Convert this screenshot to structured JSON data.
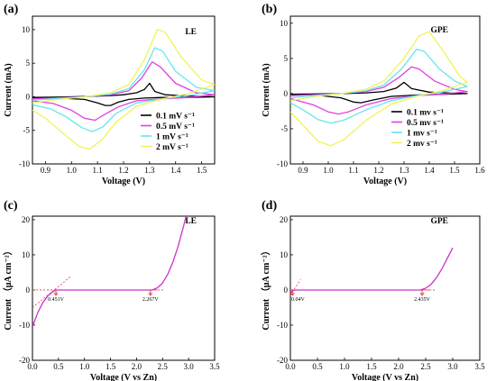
{
  "chart_data": [
    {
      "type": "line",
      "panel": "(a)",
      "tag": "LE",
      "xlabel": "Voltage (V)",
      "ylabel": "Current (mA)",
      "xlim": [
        0.85,
        1.55
      ],
      "ylim": [
        -10,
        12
      ],
      "xticks": [
        "0.9",
        "1.0",
        "1.1",
        "1.2",
        "1.3",
        "1.4",
        "1.5"
      ],
      "xtick_values": [
        0.9,
        1.0,
        1.1,
        1.2,
        1.3,
        1.4,
        1.5
      ],
      "yticks": [
        "-10",
        "-5",
        "0",
        "5",
        "10"
      ],
      "ytick_values": [
        -10,
        -5,
        0,
        5,
        10
      ],
      "legend_position": "lower-right",
      "series": [
        {
          "name": "0.1 mV s⁻¹",
          "color": "#000000",
          "x": [
            0.85,
            0.95,
            1.05,
            1.1,
            1.13,
            1.16,
            1.2,
            1.25,
            1.28,
            1.3,
            1.32,
            1.36,
            1.45,
            1.55,
            1.45,
            1.35,
            1.28,
            1.22,
            1.18,
            1.15,
            1.13,
            1.1,
            1.05,
            0.95,
            0.85
          ],
          "y": [
            -0.1,
            -0.05,
            0.05,
            0.1,
            0.15,
            0.2,
            0.3,
            0.6,
            1.1,
            2.0,
            0.8,
            0.3,
            0.1,
            0.0,
            -0.1,
            -0.1,
            -0.2,
            -0.4,
            -0.8,
            -1.3,
            -1.3,
            -0.9,
            -0.4,
            -0.2,
            -0.1
          ]
        },
        {
          "name": "0.5 mV s⁻¹",
          "color": "#e040e0",
          "x": [
            0.85,
            0.95,
            1.05,
            1.15,
            1.22,
            1.27,
            1.31,
            1.34,
            1.4,
            1.48,
            1.55,
            1.45,
            1.35,
            1.25,
            1.18,
            1.12,
            1.09,
            1.05,
            1.0,
            0.93,
            0.85
          ],
          "y": [
            -0.3,
            -0.15,
            0.0,
            0.3,
            0.9,
            2.8,
            5.2,
            4.5,
            2.0,
            0.6,
            0.3,
            -0.1,
            -0.3,
            -0.6,
            -1.5,
            -2.8,
            -3.5,
            -3.2,
            -2.0,
            -1.0,
            -0.6
          ]
        },
        {
          "name": "1   mV s⁻¹",
          "color": "#66e6ee",
          "x": [
            0.85,
            0.95,
            1.05,
            1.15,
            1.22,
            1.28,
            1.32,
            1.35,
            1.4,
            1.48,
            1.55,
            1.45,
            1.35,
            1.25,
            1.17,
            1.12,
            1.08,
            1.04,
            0.98,
            0.92,
            0.85
          ],
          "y": [
            -0.5,
            -0.25,
            0.0,
            0.4,
            1.2,
            4.0,
            7.3,
            6.8,
            3.8,
            1.4,
            0.9,
            0.2,
            -0.3,
            -0.9,
            -2.5,
            -4.5,
            -5.2,
            -4.6,
            -3.0,
            -1.8,
            -1.2
          ]
        },
        {
          "name": "2   mV s⁻¹",
          "color": "#f2f25a",
          "x": [
            0.85,
            0.95,
            1.05,
            1.15,
            1.22,
            1.28,
            1.33,
            1.36,
            1.42,
            1.5,
            1.55,
            1.45,
            1.35,
            1.25,
            1.17,
            1.12,
            1.07,
            1.03,
            0.97,
            0.9,
            0.85
          ],
          "y": [
            -0.9,
            -0.4,
            0.0,
            0.6,
            1.8,
            5.5,
            10.0,
            9.6,
            6.0,
            2.5,
            1.8,
            0.5,
            -0.3,
            -1.4,
            -3.8,
            -6.3,
            -7.8,
            -7.4,
            -5.5,
            -3.2,
            -2.0
          ]
        }
      ]
    },
    {
      "type": "line",
      "panel": "(b)",
      "tag": "GPE",
      "xlabel": "Voltage (V)",
      "ylabel": "Current (mA)",
      "xlim": [
        0.85,
        1.6
      ],
      "ylim": [
        -10,
        11
      ],
      "xticks": [
        "0.9",
        "1.0",
        "1.1",
        "1.2",
        "1.3",
        "1.4",
        "1.5",
        "1.6"
      ],
      "xtick_values": [
        0.9,
        1.0,
        1.1,
        1.2,
        1.3,
        1.4,
        1.5,
        1.6
      ],
      "yticks": [
        "-10",
        "-5",
        "0",
        "5",
        "10"
      ],
      "ytick_values": [
        -10,
        -5,
        0,
        5,
        10
      ],
      "legend_position": "lower-right",
      "series": [
        {
          "name": "0.1 mv s⁻¹",
          "color": "#000000",
          "x": [
            0.85,
            0.95,
            1.05,
            1.15,
            1.22,
            1.27,
            1.3,
            1.33,
            1.4,
            1.5,
            1.55,
            1.45,
            1.35,
            1.25,
            1.18,
            1.13,
            1.1,
            1.05,
            0.95,
            0.85
          ],
          "y": [
            -0.1,
            -0.05,
            0.0,
            0.1,
            0.3,
            0.8,
            1.6,
            0.7,
            0.2,
            0.05,
            0.0,
            -0.1,
            -0.2,
            -0.4,
            -0.9,
            -1.3,
            -1.2,
            -0.6,
            -0.2,
            -0.1
          ]
        },
        {
          "name": "0.5 mv s⁻¹",
          "color": "#e040e0",
          "x": [
            0.85,
            0.95,
            1.05,
            1.15,
            1.22,
            1.28,
            1.33,
            1.36,
            1.42,
            1.5,
            1.55,
            1.45,
            1.35,
            1.25,
            1.15,
            1.08,
            1.04,
            1.0,
            0.94,
            0.85
          ],
          "y": [
            -0.3,
            -0.15,
            0.0,
            0.3,
            0.9,
            2.3,
            3.8,
            3.5,
            1.8,
            0.6,
            0.3,
            -0.1,
            -0.3,
            -0.7,
            -1.6,
            -2.6,
            -2.9,
            -2.6,
            -1.6,
            -0.7
          ]
        },
        {
          "name": "1   mv s⁻¹",
          "color": "#66e6ee",
          "x": [
            0.85,
            0.95,
            1.05,
            1.15,
            1.22,
            1.29,
            1.35,
            1.38,
            1.44,
            1.5,
            1.55,
            1.45,
            1.35,
            1.25,
            1.15,
            1.06,
            1.01,
            0.96,
            0.9,
            0.85
          ],
          "y": [
            -0.6,
            -0.25,
            0.0,
            0.4,
            1.2,
            3.5,
            6.3,
            6.0,
            3.5,
            1.8,
            1.0,
            0.2,
            -0.3,
            -1.0,
            -2.3,
            -3.8,
            -4.2,
            -3.7,
            -2.3,
            -1.3
          ]
        },
        {
          "name": "2   mv s⁻¹",
          "color": "#f2f25a",
          "x": [
            0.85,
            0.95,
            1.05,
            1.15,
            1.22,
            1.3,
            1.36,
            1.4,
            1.46,
            1.52,
            1.55,
            1.45,
            1.35,
            1.25,
            1.15,
            1.06,
            1.01,
            0.96,
            0.9,
            0.85
          ],
          "y": [
            -1.0,
            -0.4,
            0.0,
            0.6,
            1.8,
            5.0,
            8.2,
            8.8,
            5.8,
            2.5,
            1.6,
            0.4,
            -0.4,
            -1.5,
            -3.8,
            -6.6,
            -7.4,
            -6.8,
            -4.5,
            -2.6
          ]
        }
      ]
    },
    {
      "type": "line",
      "panel": "(c)",
      "tag": "LE",
      "xlabel": "Voltage (V vs Zn)",
      "ylabel": "Current （μA cm⁻²）",
      "xlim": [
        0,
        3.5
      ],
      "ylim": [
        -20,
        21
      ],
      "xticks": [
        "0.0",
        "0.5",
        "1.0",
        "1.5",
        "2.0",
        "2.5",
        "3.0",
        "3.5"
      ],
      "xtick_values": [
        0,
        0.5,
        1.0,
        1.5,
        2.0,
        2.5,
        3.0,
        3.5
      ],
      "yticks": [
        "-20",
        "-10",
        "0",
        "10",
        "20"
      ],
      "ytick_values": [
        -20,
        -10,
        0,
        10,
        20
      ],
      "series": [
        {
          "name": "",
          "color": "#cc33cc",
          "x": [
            0.0,
            0.05,
            0.1,
            0.2,
            0.3,
            0.4,
            0.45,
            0.6,
            1.0,
            1.5,
            2.0,
            2.3,
            2.4,
            2.5,
            2.6,
            2.7,
            2.8,
            2.9,
            2.95
          ],
          "y": [
            -10.5,
            -8.5,
            -6.5,
            -3.6,
            -1.6,
            -0.4,
            0.0,
            0.0,
            0.0,
            0.0,
            0.0,
            0.0,
            0.6,
            2.0,
            4.5,
            8.0,
            12.5,
            18.0,
            21.0
          ]
        }
      ],
      "annotations": [
        {
          "text": "0.451V",
          "x": 0.451,
          "y": 0
        },
        {
          "text": "2.267V",
          "x": 2.267,
          "y": 0
        }
      ]
    },
    {
      "type": "line",
      "panel": "(d)",
      "tag": "GPE",
      "xlabel": "Voltage (V vs Zn)",
      "ylabel": "Current （μA cm⁻²）",
      "xlim": [
        0,
        3.5
      ],
      "ylim": [
        -20,
        21
      ],
      "xticks": [
        "0.0",
        "0.5",
        "1.0",
        "1.5",
        "2.0",
        "2.5",
        "3.0",
        "3.5"
      ],
      "xtick_values": [
        0,
        0.5,
        1.0,
        1.5,
        2.0,
        2.5,
        3.0,
        3.5
      ],
      "yticks": [
        "-20",
        "-10",
        "0",
        "10",
        "20"
      ],
      "ytick_values": [
        -20,
        -10,
        0,
        10,
        20
      ],
      "series": [
        {
          "name": "",
          "color": "#cc33cc",
          "x": [
            0.0,
            0.02,
            0.04,
            0.06,
            0.1,
            0.5,
            1.0,
            1.5,
            2.0,
            2.4,
            2.5,
            2.6,
            2.7,
            2.8,
            2.9,
            3.0
          ],
          "y": [
            -1.0,
            -0.6,
            -0.3,
            -0.1,
            0.0,
            0.0,
            0.0,
            0.0,
            0.0,
            0.0,
            0.5,
            1.6,
            3.5,
            6.0,
            9.0,
            12.0
          ]
        }
      ],
      "annotations": [
        {
          "text": "0.04V",
          "x": 0.04,
          "y": 0
        },
        {
          "text": "2.435V",
          "x": 2.435,
          "y": 0
        }
      ]
    }
  ]
}
